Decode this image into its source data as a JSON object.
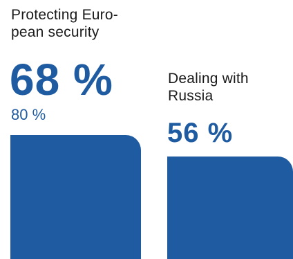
{
  "chart_data": {
    "type": "bar",
    "categories": [
      "Protecting Euro-\npean security",
      "Dealing with\nRussia"
    ],
    "series": [
      {
        "values": [
          68,
          56
        ]
      },
      {
        "values": [
          80,
          null
        ]
      }
    ],
    "value_labels": [
      "68 %",
      "56 %"
    ],
    "secondary_labels": [
      "80 %",
      ""
    ],
    "ylim": [
      0,
      100
    ]
  },
  "colors": {
    "bar": "#1f5ba1",
    "value_text": "#1f5ba1",
    "label_text": "#1a1a1a"
  }
}
